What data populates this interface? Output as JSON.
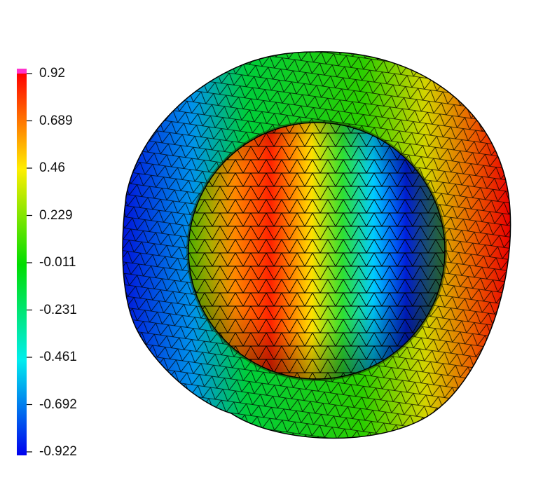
{
  "colorbar": {
    "ticks": [
      "0.92",
      "0.689",
      "0.46",
      "0.229",
      "-0.011",
      "-0.231",
      "-0.461",
      "-0.692",
      "-0.922"
    ],
    "range": [
      -0.922,
      0.92
    ],
    "colormap": "rainbow (blue-cyan-green-yellow-red)",
    "over_color": "#ff33cc"
  },
  "scene": {
    "object": "tetrahedral-mesh-sphere-in-shell",
    "edge_color": "#000000"
  }
}
